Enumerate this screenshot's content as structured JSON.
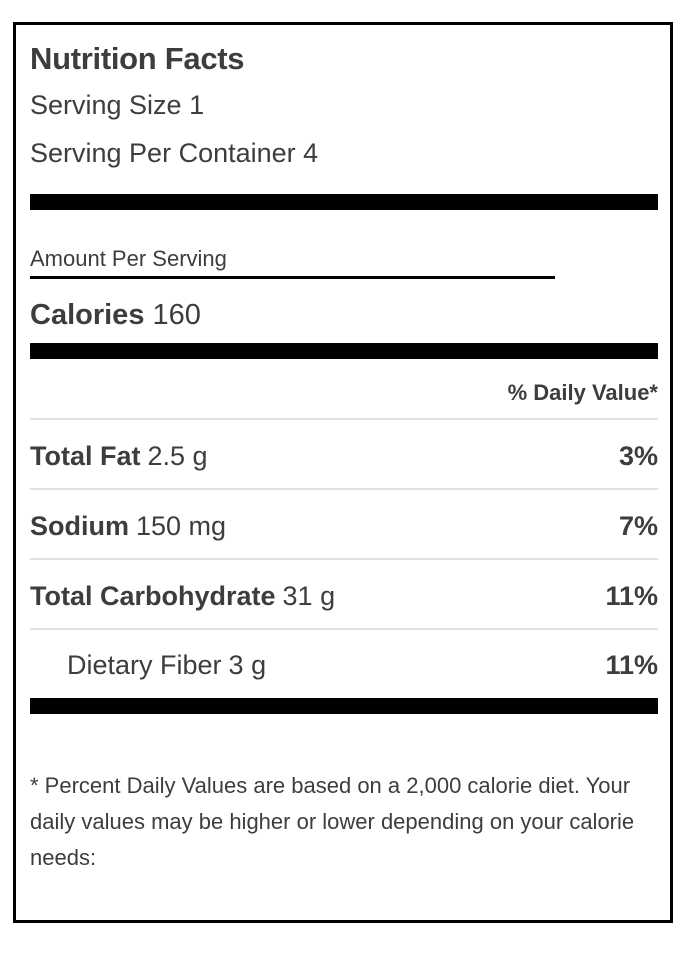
{
  "label": {
    "title": "Nutrition Facts",
    "serving_size": "Serving Size 1",
    "servings_per_container": "Serving Per Container 4",
    "amount_per_serving": "Amount Per Serving",
    "calories_label": "Calories",
    "calories_value": "160",
    "daily_value_header": "% Daily Value*",
    "nutrients": [
      {
        "name": "Total Fat",
        "amount": "2.5 g",
        "percent": "3%"
      },
      {
        "name": "Sodium",
        "amount": "150 mg",
        "percent": "7%"
      },
      {
        "name": "Total Carbohydrate",
        "amount": "31 g",
        "percent": "11%"
      },
      {
        "name": "Dietary Fiber",
        "amount": "3 g",
        "percent": "11%"
      }
    ],
    "footnote": "* Percent Daily Values are based on a 2,000 calorie diet. Your daily values may be higher or lower depending on your calorie needs:"
  },
  "colors": {
    "text": "#3d3d3d",
    "bar": "#000000",
    "border": "#000000",
    "divider": "#e0e0e0",
    "background": "#ffffff"
  }
}
